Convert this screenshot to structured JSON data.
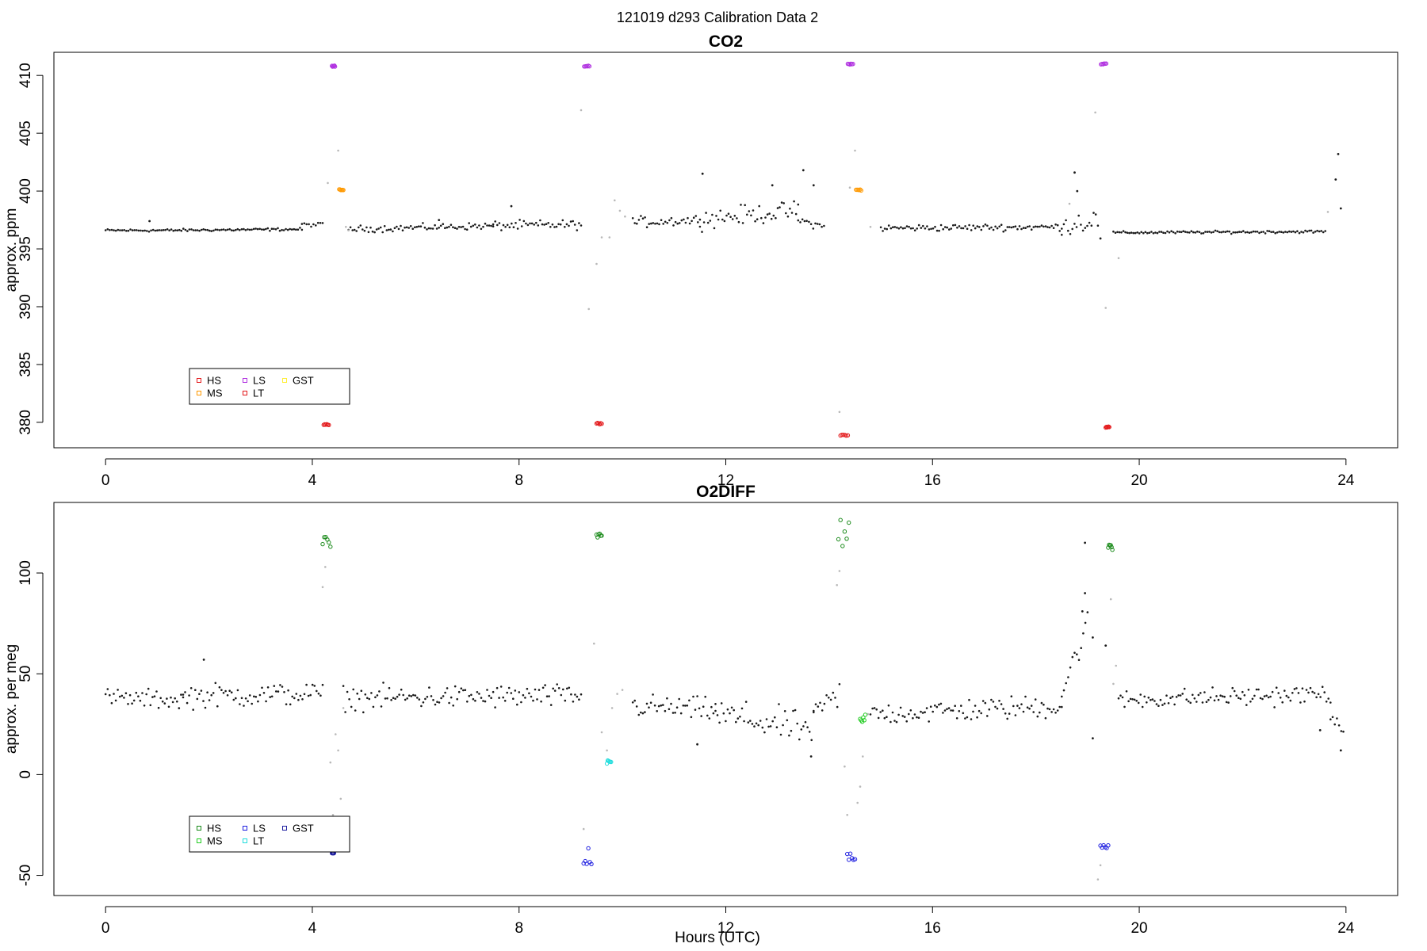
{
  "figure_title": "121019   d293   Calibration Data 2",
  "xlabel": "Hours (UTC)",
  "chart_data": [
    {
      "type": "scatter",
      "title": "CO2",
      "xlabel": "",
      "ylabel": "approx. ppm",
      "xlim": [
        -1,
        25
      ],
      "ylim": [
        377.8,
        412
      ],
      "xticks": [
        0,
        4,
        8,
        12,
        16,
        20,
        24
      ],
      "yticks": [
        380,
        385,
        390,
        395,
        400,
        405,
        410
      ],
      "legend": {
        "position": "bottom-left",
        "entries": [
          {
            "label": "HS",
            "color": "#e41a1c"
          },
          {
            "label": "LS",
            "color": "#b030e0"
          },
          {
            "label": "GST",
            "color": "#ffee33"
          },
          {
            "label": "MS",
            "color": "#ff9900"
          },
          {
            "label": "LT",
            "color": "#e41a1c"
          }
        ]
      },
      "background_segments": [
        {
          "x": [
            0.0,
            1.0
          ],
          "y": [
            396.6,
            396.6
          ],
          "noise": 0.1
        },
        {
          "x": [
            1.0,
            3.8
          ],
          "y": [
            396.6,
            396.7
          ],
          "noise": 0.1
        },
        {
          "x": [
            3.8,
            4.2
          ],
          "y": [
            397.1,
            397.1
          ],
          "noise": 0.15
        },
        {
          "x": [
            4.7,
            7.5
          ],
          "y": [
            396.7,
            397.0
          ],
          "noise": 0.25
        },
        {
          "x": [
            7.5,
            9.2
          ],
          "y": [
            397.0,
            397.1
          ],
          "noise": 0.35
        },
        {
          "x": [
            10.2,
            11.5
          ],
          "y": [
            397.3,
            397.5
          ],
          "noise": 0.4
        },
        {
          "x": [
            11.5,
            13.4
          ],
          "y": [
            397.6,
            398.3
          ],
          "noise": 0.7
        },
        {
          "x": [
            13.4,
            13.9
          ],
          "y": [
            397.5,
            396.9
          ],
          "noise": 0.3
        },
        {
          "x": [
            15.0,
            18.5
          ],
          "y": [
            396.8,
            396.9
          ],
          "noise": 0.25
        },
        {
          "x": [
            18.5,
            19.2
          ],
          "y": [
            397.0,
            397.6
          ],
          "noise": 0.9
        },
        {
          "x": [
            19.5,
            23.6
          ],
          "y": [
            396.4,
            396.5
          ],
          "noise": 0.1
        }
      ],
      "outliers": [
        {
          "x": 0.85,
          "y": 397.4
        },
        {
          "x": 6.45,
          "y": 397.5
        },
        {
          "x": 7.85,
          "y": 398.7
        },
        {
          "x": 11.55,
          "y": 401.5
        },
        {
          "x": 12.9,
          "y": 400.5
        },
        {
          "x": 13.5,
          "y": 401.8
        },
        {
          "x": 13.7,
          "y": 400.5
        },
        {
          "x": 18.75,
          "y": 401.6
        },
        {
          "x": 18.8,
          "y": 400.0
        },
        {
          "x": 19.25,
          "y": 395.9
        },
        {
          "x": 23.85,
          "y": 403.2
        },
        {
          "x": 23.8,
          "y": 401.0
        },
        {
          "x": 23.9,
          "y": 398.5
        }
      ],
      "transition_points": [
        {
          "x": 4.3,
          "y": 400.7
        },
        {
          "x": 4.5,
          "y": 403.5
        },
        {
          "x": 4.65,
          "y": 396.9
        },
        {
          "x": 4.7,
          "y": 396.6
        },
        {
          "x": 9.2,
          "y": 407.0
        },
        {
          "x": 9.35,
          "y": 389.8
        },
        {
          "x": 9.5,
          "y": 393.7
        },
        {
          "x": 9.6,
          "y": 396.0
        },
        {
          "x": 9.75,
          "y": 396.0
        },
        {
          "x": 9.85,
          "y": 399.2
        },
        {
          "x": 9.95,
          "y": 398.3
        },
        {
          "x": 10.05,
          "y": 397.8
        },
        {
          "x": 14.2,
          "y": 380.9
        },
        {
          "x": 14.4,
          "y": 400.3
        },
        {
          "x": 14.5,
          "y": 403.5
        },
        {
          "x": 14.8,
          "y": 396.9
        },
        {
          "x": 19.15,
          "y": 406.8
        },
        {
          "x": 19.35,
          "y": 389.9
        },
        {
          "x": 19.6,
          "y": 394.2
        },
        {
          "x": 18.65,
          "y": 398.9
        },
        {
          "x": 23.65,
          "y": 398.2
        }
      ],
      "calibration_points": [
        {
          "series": "LS",
          "x": [
            4.38,
            4.44
          ],
          "y": 410.8,
          "color": "#b030e0"
        },
        {
          "series": "LS",
          "x": [
            9.26,
            9.36
          ],
          "y": 410.8,
          "color": "#b030e0"
        },
        {
          "series": "LS",
          "x": [
            14.36,
            14.46
          ],
          "y": 411.0,
          "color": "#b030e0"
        },
        {
          "series": "LS",
          "x": [
            19.26,
            19.36
          ],
          "y": 411.0,
          "color": "#b030e0"
        },
        {
          "series": "MS",
          "x": [
            4.52,
            4.6
          ],
          "y": 400.1,
          "color": "#ff9900"
        },
        {
          "series": "MS",
          "x": [
            14.52,
            14.62
          ],
          "y": 400.1,
          "color": "#ff9900"
        },
        {
          "series": "HS",
          "x": [
            4.22,
            4.32
          ],
          "y": 379.8,
          "color": "#e41a1c"
        },
        {
          "series": "HS",
          "x": [
            9.5,
            9.6
          ],
          "y": 379.9,
          "color": "#e41a1c"
        },
        {
          "series": "HS",
          "x": [
            14.22,
            14.36
          ],
          "y": 378.9,
          "color": "#e41a1c"
        },
        {
          "series": "HS",
          "x": [
            19.35,
            19.42
          ],
          "y": 379.6,
          "color": "#e41a1c"
        }
      ]
    },
    {
      "type": "scatter",
      "title": "O2DIFF",
      "xlabel": "Hours (UTC)",
      "ylabel": "approx. per meg",
      "xlim": [
        -1,
        25
      ],
      "ylim": [
        -60,
        135
      ],
      "xticks": [
        0,
        4,
        8,
        12,
        16,
        20,
        24
      ],
      "yticks": [
        -50,
        0,
        50,
        100
      ],
      "legend": {
        "position": "bottom-left",
        "entries": [
          {
            "label": "HS",
            "color": "#1a8a1a"
          },
          {
            "label": "LS",
            "color": "#2020e0"
          },
          {
            "label": "GST",
            "color": "#2020a0"
          },
          {
            "label": "MS",
            "color": "#22cc22"
          },
          {
            "label": "LT",
            "color": "#22dddd"
          }
        ]
      },
      "background_segments": [
        {
          "x": [
            0.0,
            1.5
          ],
          "y": [
            38,
            37
          ],
          "noise": 4
        },
        {
          "x": [
            1.5,
            4.2
          ],
          "y": [
            39,
            40
          ],
          "noise": 5
        },
        {
          "x": [
            4.6,
            9.2
          ],
          "y": [
            38,
            39
          ],
          "noise": 5
        },
        {
          "x": [
            10.2,
            11.8
          ],
          "y": [
            34,
            32
          ],
          "noise": 5
        },
        {
          "x": [
            11.8,
            13.7
          ],
          "y": [
            30,
            22
          ],
          "noise": 7
        },
        {
          "x": [
            13.7,
            14.2
          ],
          "y": [
            30,
            40
          ],
          "noise": 6
        },
        {
          "x": [
            14.8,
            18.5
          ],
          "y": [
            30,
            34
          ],
          "noise": 5
        },
        {
          "x": [
            18.5,
            19.0
          ],
          "y": [
            40,
            75
          ],
          "noise": 6
        },
        {
          "x": [
            19.6,
            23.7
          ],
          "y": [
            37,
            40
          ],
          "noise": 4
        },
        {
          "x": [
            23.7,
            23.95
          ],
          "y": [
            30,
            15
          ],
          "noise": 5
        }
      ],
      "outliers": [
        {
          "x": 1.9,
          "y": 57
        },
        {
          "x": 18.95,
          "y": 115
        },
        {
          "x": 18.95,
          "y": 90
        },
        {
          "x": 18.9,
          "y": 81
        },
        {
          "x": 19.1,
          "y": 68
        },
        {
          "x": 19.1,
          "y": 18
        },
        {
          "x": 19.35,
          "y": 64
        },
        {
          "x": 13.65,
          "y": 9
        },
        {
          "x": 11.45,
          "y": 15
        },
        {
          "x": 23.5,
          "y": 22
        },
        {
          "x": 23.9,
          "y": 12
        }
      ],
      "transition_points": [
        {
          "x": 4.2,
          "y": 93
        },
        {
          "x": 4.25,
          "y": 103
        },
        {
          "x": 4.35,
          "y": 6
        },
        {
          "x": 4.4,
          "y": -20
        },
        {
          "x": 4.45,
          "y": 20
        },
        {
          "x": 4.5,
          "y": 12
        },
        {
          "x": 4.55,
          "y": -12
        },
        {
          "x": 4.6,
          "y": 33
        },
        {
          "x": 9.25,
          "y": -27
        },
        {
          "x": 9.45,
          "y": 65
        },
        {
          "x": 9.6,
          "y": 21
        },
        {
          "x": 9.7,
          "y": 12
        },
        {
          "x": 9.8,
          "y": 33
        },
        {
          "x": 9.9,
          "y": 40
        },
        {
          "x": 10.0,
          "y": 42
        },
        {
          "x": 14.15,
          "y": 94
        },
        {
          "x": 14.2,
          "y": 101
        },
        {
          "x": 14.3,
          "y": 4
        },
        {
          "x": 14.35,
          "y": -20
        },
        {
          "x": 14.55,
          "y": -14
        },
        {
          "x": 14.6,
          "y": -6
        },
        {
          "x": 14.65,
          "y": 9
        },
        {
          "x": 14.75,
          "y": 30
        },
        {
          "x": 19.2,
          "y": -52
        },
        {
          "x": 19.25,
          "y": -45
        },
        {
          "x": 19.45,
          "y": 87
        },
        {
          "x": 19.5,
          "y": 45
        },
        {
          "x": 19.55,
          "y": 54
        }
      ],
      "calibration_points": [
        {
          "series": "HS",
          "x": [
            4.2,
            4.35
          ],
          "y": [
            113,
            121
          ],
          "color": "#1a8a1a"
        },
        {
          "series": "HS",
          "x": [
            9.5,
            9.6
          ],
          "y": [
            117,
            121
          ],
          "color": "#1a8a1a"
        },
        {
          "series": "HS",
          "x": [
            14.18,
            14.38
          ],
          "y": [
            112,
            129
          ],
          "color": "#1a8a1a"
        },
        {
          "series": "HS",
          "x": [
            19.4,
            19.48
          ],
          "y": [
            111,
            114
          ],
          "color": "#1a8a1a"
        },
        {
          "series": "MS",
          "x": [
            14.6,
            14.7
          ],
          "y": [
            26,
            30
          ],
          "color": "#22cc22"
        },
        {
          "series": "LT",
          "x": [
            9.7,
            9.78
          ],
          "y": [
            5,
            7
          ],
          "color": "#22dddd"
        },
        {
          "series": "LS",
          "x": [
            9.25,
            9.4
          ],
          "y": [
            -45,
            -33
          ],
          "color": "#2020e0"
        },
        {
          "series": "LS",
          "x": [
            14.35,
            14.5
          ],
          "y": [
            -44,
            -37
          ],
          "color": "#2020e0"
        },
        {
          "series": "LS",
          "x": [
            19.25,
            19.4
          ],
          "y": [
            -38,
            -35
          ],
          "color": "#2020e0"
        },
        {
          "series": "GST",
          "x": [
            4.38,
            4.42
          ],
          "y": [
            -39,
            -39
          ],
          "color": "#2020a0"
        }
      ]
    }
  ]
}
